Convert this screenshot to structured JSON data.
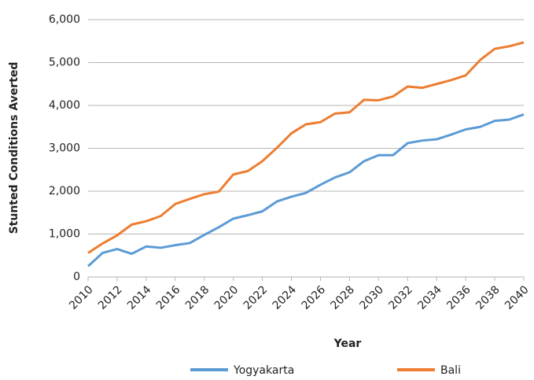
{
  "chart_data": {
    "type": "line",
    "x_label": "Year",
    "y_label": "Stunted Conditions Averted",
    "x": [
      2010,
      2011,
      2012,
      2013,
      2014,
      2015,
      2016,
      2017,
      2018,
      2019,
      2020,
      2021,
      2022,
      2023,
      2024,
      2025,
      2026,
      2027,
      2028,
      2029,
      2030,
      2031,
      2032,
      2033,
      2034,
      2035,
      2036,
      2037,
      2038,
      2039,
      2040
    ],
    "series": [
      {
        "name": "Yogyakarta",
        "color": "#5b9bd5",
        "values": [
          250,
          560,
          650,
          540,
          710,
          680,
          740,
          790,
          980,
          1160,
          1360,
          1440,
          1530,
          1760,
          1870,
          1960,
          2150,
          2320,
          2440,
          2700,
          2840,
          2840,
          3120,
          3180,
          3210,
          3320,
          3440,
          3500,
          3640,
          3670,
          3790
        ]
      },
      {
        "name": "Bali",
        "color": "#ed7d31",
        "values": [
          560,
          780,
          970,
          1220,
          1300,
          1420,
          1700,
          1820,
          1930,
          1990,
          2390,
          2470,
          2700,
          3010,
          3350,
          3560,
          3610,
          3810,
          3840,
          4130,
          4120,
          4210,
          4440,
          4410,
          4500,
          4590,
          4700,
          5060,
          5320,
          5380,
          5470
        ]
      }
    ],
    "xlim": [
      2010,
      2040
    ],
    "xticks": [
      2010,
      2012,
      2014,
      2016,
      2018,
      2020,
      2022,
      2024,
      2026,
      2028,
      2030,
      2032,
      2034,
      2036,
      2038,
      2040
    ],
    "ylim": [
      0,
      6000
    ],
    "yticks": [
      0,
      {
        "value": 1000,
        "label": "1,000"
      },
      {
        "value": 2000,
        "label": "2,000"
      },
      {
        "value": 3000,
        "label": "3,000"
      },
      {
        "value": 4000,
        "label": "4,000"
      },
      {
        "value": 5000,
        "label": "5,000"
      },
      {
        "value": 6000,
        "label": "6,000"
      }
    ],
    "grid": true,
    "legend": "bottom"
  }
}
